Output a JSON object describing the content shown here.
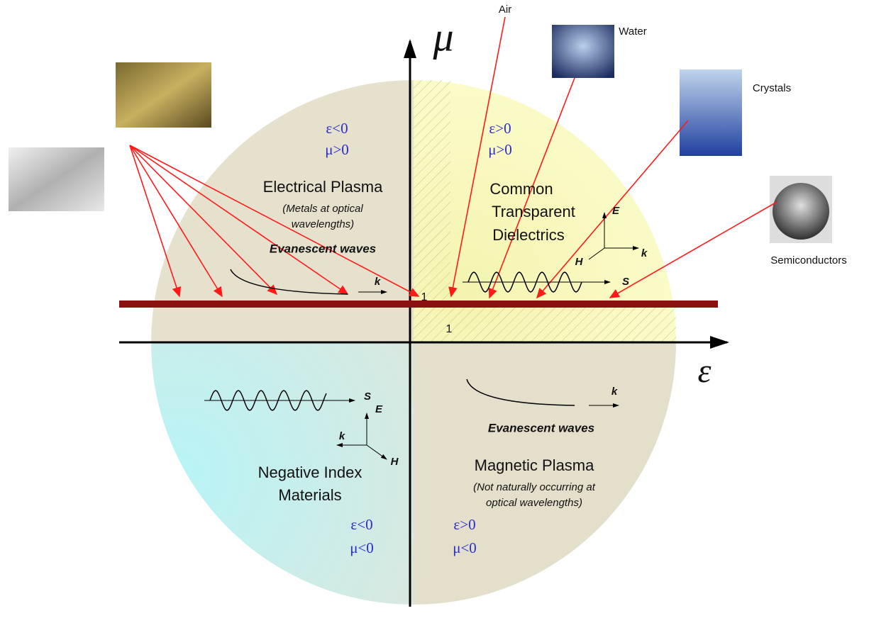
{
  "axes": {
    "x_label": "ε",
    "y_label": "μ",
    "x_unit_tick": "1",
    "y_unit_tick": "1"
  },
  "quadrants": [
    {
      "conditions": [
        "ε<0",
        "μ>0"
      ],
      "title": [
        "Electrical Plasma"
      ],
      "note": [
        "(Metals at optical",
        "wavelengths)"
      ],
      "wave": "Evanescent waves",
      "wave_labels": [
        "k"
      ]
    },
    {
      "conditions": [
        "ε>0",
        "μ>0"
      ],
      "title": [
        "Common",
        "Transparent",
        "Dielectrics"
      ],
      "wave_labels": [
        "E",
        "H",
        "k",
        "S"
      ]
    },
    {
      "conditions": [
        "ε<0",
        "μ<0"
      ],
      "title": [
        "Negative Index",
        "Materials"
      ],
      "wave_labels": [
        "S",
        "E",
        "k",
        "H"
      ]
    },
    {
      "conditions": [
        "ε>0",
        "μ<0"
      ],
      "title": [
        "Magnetic Plasma"
      ],
      "note": [
        "(Not naturally occurring at",
        "optical wavelengths)"
      ],
      "wave": "Evanescent waves",
      "wave_labels": [
        "k"
      ]
    }
  ],
  "materials": [
    "Air",
    "Water",
    "Crystals",
    "Semiconductors"
  ]
}
